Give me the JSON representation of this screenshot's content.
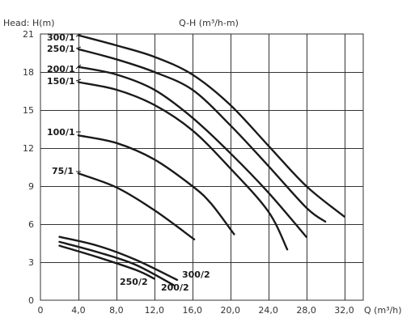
{
  "chart_data": {
    "type": "line",
    "title": "Q-H (m³/h-m)",
    "ylabel": "Head: H(m)",
    "xlabel": "Q (m³/h)",
    "xlim": [
      0,
      34
    ],
    "ylim": [
      0,
      21
    ],
    "x_ticks": [
      "0",
      "4,0",
      "8,0",
      "12,0",
      "16,0",
      "20,0",
      "24,0",
      "28,0",
      "32,0"
    ],
    "y_ticks": [
      "0",
      "3",
      "6",
      "9",
      "12",
      "15",
      "18",
      "21"
    ],
    "x_tick_values": [
      0,
      4,
      8,
      12,
      16,
      20,
      24,
      28,
      32
    ],
    "y_tick_values": [
      0,
      3,
      6,
      9,
      12,
      15,
      18,
      21
    ],
    "grid": true,
    "series": [
      {
        "name": "300/1",
        "x": [
          4,
          8,
          12,
          16,
          20,
          24,
          28,
          32
        ],
        "y": [
          20.9,
          20.1,
          19.2,
          17.8,
          15.4,
          12.2,
          9.0,
          6.6
        ]
      },
      {
        "name": "250/1",
        "x": [
          4,
          8,
          12,
          16,
          20,
          24,
          28,
          30
        ],
        "y": [
          19.8,
          19.0,
          18.0,
          16.6,
          13.8,
          10.6,
          7.3,
          6.2
        ]
      },
      {
        "name": "200/1",
        "x": [
          4,
          8,
          12,
          16,
          20,
          24,
          28
        ],
        "y": [
          18.4,
          17.8,
          16.6,
          14.4,
          11.6,
          8.5,
          5.0
        ]
      },
      {
        "name": "150/1",
        "x": [
          4,
          8,
          12,
          16,
          20,
          24,
          26
        ],
        "y": [
          17.2,
          16.6,
          15.4,
          13.4,
          10.4,
          7.0,
          4.0
        ]
      },
      {
        "name": "100/1",
        "x": [
          4,
          8,
          12,
          16,
          18,
          20.4
        ],
        "y": [
          13.0,
          12.4,
          11.1,
          9.0,
          7.6,
          5.2
        ]
      },
      {
        "name": "75/1",
        "x": [
          4,
          8,
          12,
          16.2
        ],
        "y": [
          10.0,
          8.9,
          7.1,
          4.8
        ]
      },
      {
        "name": "300/2",
        "x": [
          2,
          6,
          10,
          14.4
        ],
        "y": [
          5.0,
          4.3,
          3.2,
          1.6
        ]
      },
      {
        "name": "200/2",
        "x": [
          2,
          6,
          10,
          14
        ],
        "y": [
          4.6,
          3.8,
          2.8,
          1.2
        ]
      },
      {
        "name": "250/2",
        "x": [
          2,
          6,
          10,
          12
        ],
        "y": [
          4.3,
          3.4,
          2.4,
          1.7
        ]
      }
    ]
  },
  "labels": {
    "s300_1": "300/1",
    "s250_1": "250/1",
    "s200_1": "200/1",
    "s150_1": "150/1",
    "s100_1": "100/1",
    "s75_1": "75/1",
    "s300_2": "300/2",
    "s200_2": "200/2",
    "s250_2": "250/2"
  }
}
